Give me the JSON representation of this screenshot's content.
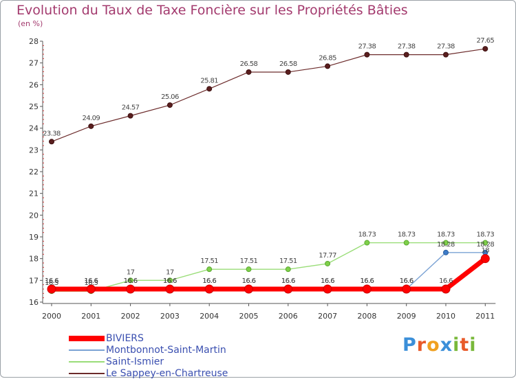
{
  "chart_data": {
    "type": "line",
    "title": "Evolution du Taux de Taxe Foncière sur les Propriétés Bâties",
    "ylabel": "(en %)",
    "xlabel": "",
    "x": [
      "2000",
      "2001",
      "2002",
      "2003",
      "2004",
      "2005",
      "2006",
      "2007",
      "2008",
      "2009",
      "2010",
      "2011"
    ],
    "ylim": [
      16,
      28
    ],
    "yticks": [
      16,
      17,
      18,
      19,
      20,
      21,
      22,
      23,
      24,
      25,
      26,
      27,
      28
    ],
    "grid": false,
    "legend_position": "bottom-left",
    "series": [
      {
        "name": "BIVIERS",
        "color": "#ff0000",
        "values": [
          16.6,
          16.6,
          16.6,
          16.6,
          16.6,
          16.6,
          16.6,
          16.6,
          16.6,
          16.6,
          16.6,
          18
        ],
        "labels": [
          "16.6",
          "16.6",
          "16.6",
          "16.6",
          "16.6",
          "16.6",
          "16.6",
          "16.6",
          "16.6",
          "16.6",
          "16.6",
          "18"
        ]
      },
      {
        "name": "Montbonnot-Saint-Martin",
        "color": "#7aa2d4",
        "values": [
          16.6,
          16.6,
          16.6,
          16.6,
          16.6,
          16.6,
          16.6,
          16.6,
          16.6,
          16.6,
          18.28,
          18.28
        ],
        "labels": [
          "16.6",
          "16.6",
          "16.6",
          "16.6",
          "16.6",
          "16.6",
          "16.6",
          "16.6",
          "16.6",
          "16.6",
          "18.28",
          "18.28"
        ]
      },
      {
        "name": "Saint-Ismier",
        "color": "#99dd77",
        "values": [
          16.5,
          16.5,
          17,
          17,
          17.51,
          17.51,
          17.51,
          17.77,
          18.73,
          18.73,
          18.73,
          18.73
        ],
        "labels": [
          "16.5",
          "16.5",
          "17",
          "17",
          "17.51",
          "17.51",
          "17.51",
          "17.77",
          "18.73",
          "18.73",
          "18.73",
          "18.73"
        ]
      },
      {
        "name": "Le Sappey-en-Chartreuse",
        "color": "#6b2a2a",
        "values": [
          23.38,
          24.09,
          24.57,
          25.06,
          25.81,
          26.58,
          26.58,
          26.85,
          27.38,
          27.38,
          27.38,
          27.65
        ],
        "labels": [
          "23.38",
          "24.09",
          "24.57",
          "25.06",
          "25.81",
          "26.58",
          "26.58",
          "26.85",
          "27.38",
          "27.38",
          "27.38",
          "27.65"
        ]
      }
    ]
  },
  "logo": {
    "letters": [
      {
        "char": "P",
        "color": "#3b8fd9"
      },
      {
        "char": "r",
        "color": "#e85a2a"
      },
      {
        "char": "o",
        "color": "#f0a020"
      },
      {
        "char": "x",
        "color": "#3b8fd9"
      },
      {
        "char": "i",
        "color": "#79b83a"
      },
      {
        "char": "t",
        "color": "#e85a2a"
      },
      {
        "char": "i",
        "color": "#79b83a"
      }
    ]
  }
}
